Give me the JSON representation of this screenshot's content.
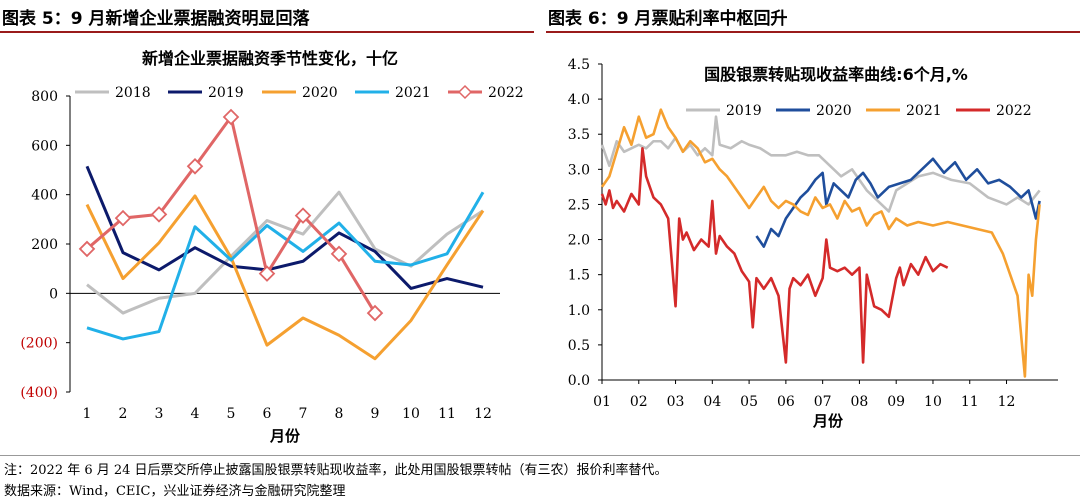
{
  "panels": {
    "left_title": "图表 5：9 月新增企业票据融资明显回落",
    "right_title": "图表 6：9 月票贴利率中枢回升"
  },
  "footer": {
    "note": "注：2022 年 6 月 24 日后票交所停止披露国股银票转贴现收益率，此处用国股银票转帖（有三农）报价利率替代。",
    "source": "数据来源：Wind，CEIC，兴业证券经济与金融研究院整理"
  },
  "chart_data": [
    {
      "type": "line",
      "title": "新增企业票据融资季节性变化，十亿",
      "xlabel": "月份",
      "ylabel": "",
      "categories": [
        "1",
        "2",
        "3",
        "4",
        "5",
        "6",
        "7",
        "8",
        "9",
        "10",
        "11",
        "12"
      ],
      "yticks": [
        "800",
        "600",
        "400",
        "200",
        "0",
        "(200)",
        "(400)"
      ],
      "ylim": [
        -400,
        800
      ],
      "negative_tick_color": "#c00000",
      "legend_position": "top",
      "series": [
        {
          "name": "2018",
          "color": "#bfbfbf",
          "values": [
            35,
            -80,
            -20,
            0,
            150,
            295,
            240,
            410,
            180,
            110,
            240,
            335
          ]
        },
        {
          "name": "2019",
          "color": "#0c1a6b",
          "values": [
            515,
            165,
            95,
            185,
            110,
            95,
            130,
            245,
            170,
            20,
            60,
            25
          ]
        },
        {
          "name": "2020",
          "color": "#f5a030",
          "values": [
            360,
            60,
            205,
            395,
            145,
            -210,
            -100,
            -170,
            -265,
            -110,
            115,
            335
          ]
        },
        {
          "name": "2021",
          "color": "#21b0e8",
          "values": [
            -140,
            -185,
            -155,
            270,
            135,
            275,
            170,
            285,
            130,
            115,
            160,
            410
          ]
        },
        {
          "name": "2022",
          "color": "#e06666",
          "marker": "diamond",
          "values": [
            180,
            305,
            320,
            515,
            715,
            80,
            315,
            160,
            -80,
            null,
            null,
            null
          ]
        }
      ]
    },
    {
      "type": "line",
      "title": "国股银票转贴现收益率曲线:6个月,%",
      "xlabel": "月份",
      "ylabel": "",
      "categories": [
        "01",
        "02",
        "03",
        "04",
        "05",
        "06",
        "07",
        "08",
        "09",
        "10",
        "11",
        "12"
      ],
      "yticks": [
        "4.5",
        "4.0",
        "3.5",
        "3.0",
        "2.5",
        "2.0",
        "1.5",
        "1.0",
        "0.5",
        "0.0"
      ],
      "ylim": [
        0,
        4.5
      ],
      "legend_position": "top",
      "series": [
        {
          "name": "2019",
          "color": "#bfbfbf",
          "x": [
            1,
            1.2,
            1.4,
            1.6,
            1.8,
            2.0,
            2.2,
            2.4,
            2.6,
            2.8,
            3.0,
            3.2,
            3.4,
            3.6,
            3.8,
            4.0,
            4.1,
            4.2,
            4.5,
            4.8,
            5.0,
            5.3,
            5.6,
            6.0,
            6.3,
            6.6,
            6.9,
            7.2,
            7.5,
            7.8,
            8.0,
            8.2,
            8.5,
            8.8,
            9.0,
            9.3,
            9.6,
            10.0,
            10.5,
            11.0,
            11.5,
            12.0,
            12.3,
            12.6,
            12.9
          ],
          "values": [
            3.35,
            3.05,
            3.4,
            3.25,
            3.3,
            3.35,
            3.3,
            3.4,
            3.4,
            3.3,
            3.45,
            3.25,
            3.35,
            3.2,
            3.3,
            3.2,
            3.75,
            3.35,
            3.3,
            3.4,
            3.35,
            3.3,
            3.2,
            3.2,
            3.25,
            3.2,
            3.2,
            3.05,
            2.9,
            3.0,
            2.85,
            2.7,
            2.55,
            2.4,
            2.7,
            2.8,
            2.9,
            2.95,
            2.85,
            2.8,
            2.6,
            2.5,
            2.6,
            2.5,
            2.7
          ]
        },
        {
          "name": "2020",
          "color": "#1f4e9c",
          "x": [
            5.2,
            5.4,
            5.6,
            5.8,
            6.0,
            6.2,
            6.4,
            6.6,
            6.8,
            7.0,
            7.1,
            7.3,
            7.5,
            7.7,
            7.9,
            8.1,
            8.3,
            8.5,
            8.8,
            9.1,
            9.4,
            9.7,
            10.0,
            10.3,
            10.6,
            10.9,
            11.2,
            11.5,
            11.8,
            12.1,
            12.4,
            12.6,
            12.8,
            12.9
          ],
          "values": [
            2.05,
            1.9,
            2.15,
            2.05,
            2.3,
            2.45,
            2.6,
            2.7,
            2.85,
            2.95,
            2.5,
            2.8,
            2.7,
            2.6,
            2.85,
            2.95,
            2.8,
            2.6,
            2.75,
            2.8,
            2.85,
            3.0,
            3.15,
            2.95,
            3.1,
            2.85,
            3.0,
            2.8,
            2.85,
            2.75,
            2.6,
            2.7,
            2.3,
            2.55
          ]
        },
        {
          "name": "2021",
          "color": "#f5a030",
          "x": [
            1.0,
            1.2,
            1.4,
            1.6,
            1.8,
            2.0,
            2.2,
            2.4,
            2.6,
            2.8,
            3.0,
            3.2,
            3.4,
            3.6,
            3.8,
            4.0,
            4.2,
            4.4,
            4.6,
            4.8,
            5.0,
            5.2,
            5.4,
            5.6,
            5.8,
            6.0,
            6.2,
            6.4,
            6.6,
            6.8,
            7.0,
            7.2,
            7.4,
            7.6,
            7.8,
            8.0,
            8.2,
            8.4,
            8.6,
            8.8,
            9.0,
            9.3,
            9.6,
            10.0,
            10.4,
            10.8,
            11.2,
            11.6,
            11.9,
            12.1,
            12.3,
            12.5,
            12.6,
            12.7,
            12.8,
            12.9
          ],
          "values": [
            2.75,
            2.9,
            3.25,
            3.6,
            3.35,
            3.75,
            3.45,
            3.5,
            3.85,
            3.6,
            3.45,
            3.25,
            3.4,
            3.3,
            3.1,
            3.15,
            3.0,
            2.9,
            2.75,
            2.6,
            2.45,
            2.6,
            2.75,
            2.55,
            2.45,
            2.55,
            2.5,
            2.4,
            2.35,
            2.6,
            2.45,
            2.5,
            2.3,
            2.55,
            2.4,
            2.45,
            2.2,
            2.35,
            2.4,
            2.15,
            2.3,
            2.2,
            2.25,
            2.2,
            2.25,
            2.2,
            2.15,
            2.1,
            1.8,
            1.5,
            1.2,
            0.05,
            1.5,
            1.2,
            2.0,
            2.5
          ]
        },
        {
          "name": "2022",
          "color": "#d42a2a",
          "x": [
            1.0,
            1.1,
            1.2,
            1.3,
            1.4,
            1.6,
            1.8,
            2.0,
            2.1,
            2.2,
            2.3,
            2.4,
            2.6,
            2.8,
            3.0,
            3.1,
            3.2,
            3.3,
            3.5,
            3.7,
            3.9,
            4.0,
            4.1,
            4.2,
            4.4,
            4.6,
            4.8,
            5.0,
            5.1,
            5.2,
            5.4,
            5.6,
            5.8,
            6.0,
            6.1,
            6.2,
            6.4,
            6.6,
            6.8,
            7.0,
            7.1,
            7.2,
            7.4,
            7.6,
            7.8,
            8.0,
            8.1,
            8.2,
            8.4,
            8.6,
            8.8,
            9.0,
            9.1,
            9.2,
            9.4,
            9.6,
            9.8,
            10.0,
            10.2,
            10.4
          ],
          "values": [
            2.65,
            2.5,
            2.7,
            2.45,
            2.55,
            2.4,
            2.65,
            2.5,
            3.3,
            2.9,
            2.75,
            2.6,
            2.5,
            2.3,
            1.05,
            2.3,
            2.0,
            2.1,
            1.85,
            2.0,
            1.9,
            2.55,
            1.8,
            2.05,
            1.9,
            1.8,
            1.55,
            1.4,
            0.75,
            1.45,
            1.3,
            1.45,
            1.2,
            0.25,
            1.3,
            1.45,
            1.35,
            1.5,
            1.2,
            1.45,
            2.0,
            1.6,
            1.55,
            1.6,
            1.5,
            1.6,
            0.25,
            1.5,
            1.05,
            1.0,
            0.9,
            1.45,
            1.6,
            1.35,
            1.65,
            1.5,
            1.75,
            1.55,
            1.65,
            1.6
          ]
        }
      ]
    }
  ]
}
